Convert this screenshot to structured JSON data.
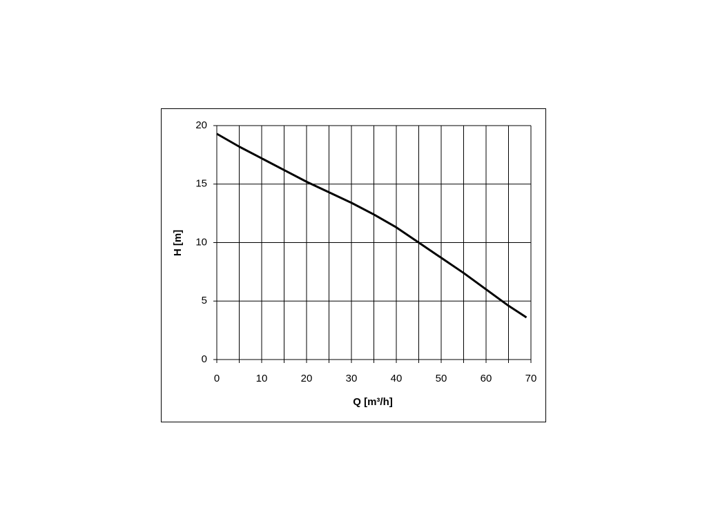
{
  "chart_data": {
    "type": "line",
    "xlabel": "Q [m³/h]",
    "ylabel": "H [m]",
    "x": [
      0,
      5,
      10,
      15,
      20,
      25,
      30,
      35,
      40,
      45,
      50,
      55,
      60,
      65,
      69
    ],
    "series": [
      {
        "color": "#000000",
        "values": [
          19.3,
          18.2,
          17.2,
          16.2,
          15.2,
          14.3,
          13.4,
          12.4,
          11.3,
          10.0,
          8.7,
          7.4,
          6.0,
          4.6,
          3.6
        ]
      }
    ],
    "xlim": [
      0,
      70
    ],
    "ylim": [
      0,
      20
    ],
    "xticks": [
      0,
      10,
      20,
      30,
      40,
      50,
      60,
      70
    ],
    "xminor": [
      5,
      15,
      25,
      35,
      45,
      55,
      65
    ],
    "yticks": [
      0,
      5,
      10,
      15,
      20
    ],
    "grid": true
  }
}
